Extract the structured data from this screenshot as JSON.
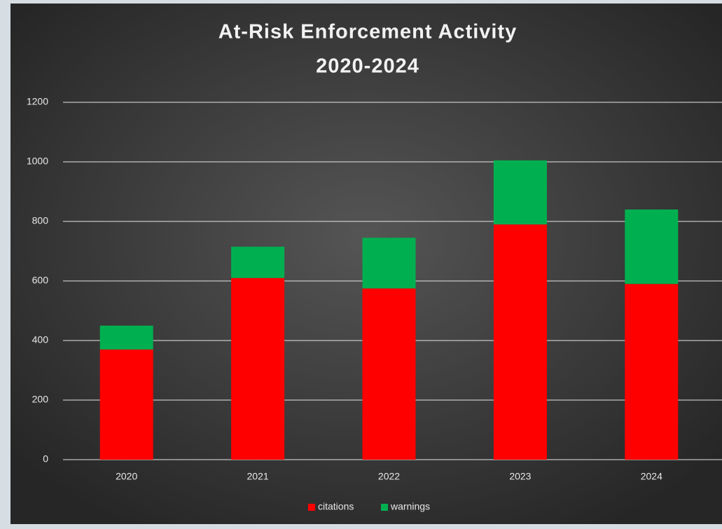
{
  "chart_data": {
    "type": "stacked_bar",
    "title": "At-Risk Enforcement Activity",
    "subtitle": "2020-2024",
    "categories": [
      "2020",
      "2021",
      "2022",
      "2023",
      "2024"
    ],
    "series": [
      {
        "name": "citations",
        "color": "#ff0000",
        "values": [
          370,
          610,
          575,
          790,
          590
        ]
      },
      {
        "name": "warnings",
        "color": "#00b050",
        "values": [
          80,
          105,
          170,
          215,
          250
        ]
      }
    ],
    "ylim": [
      0,
      1200
    ],
    "yticks": [
      0,
      200,
      400,
      600,
      800,
      1000,
      1200
    ],
    "grid": true,
    "legend": "bottom"
  }
}
